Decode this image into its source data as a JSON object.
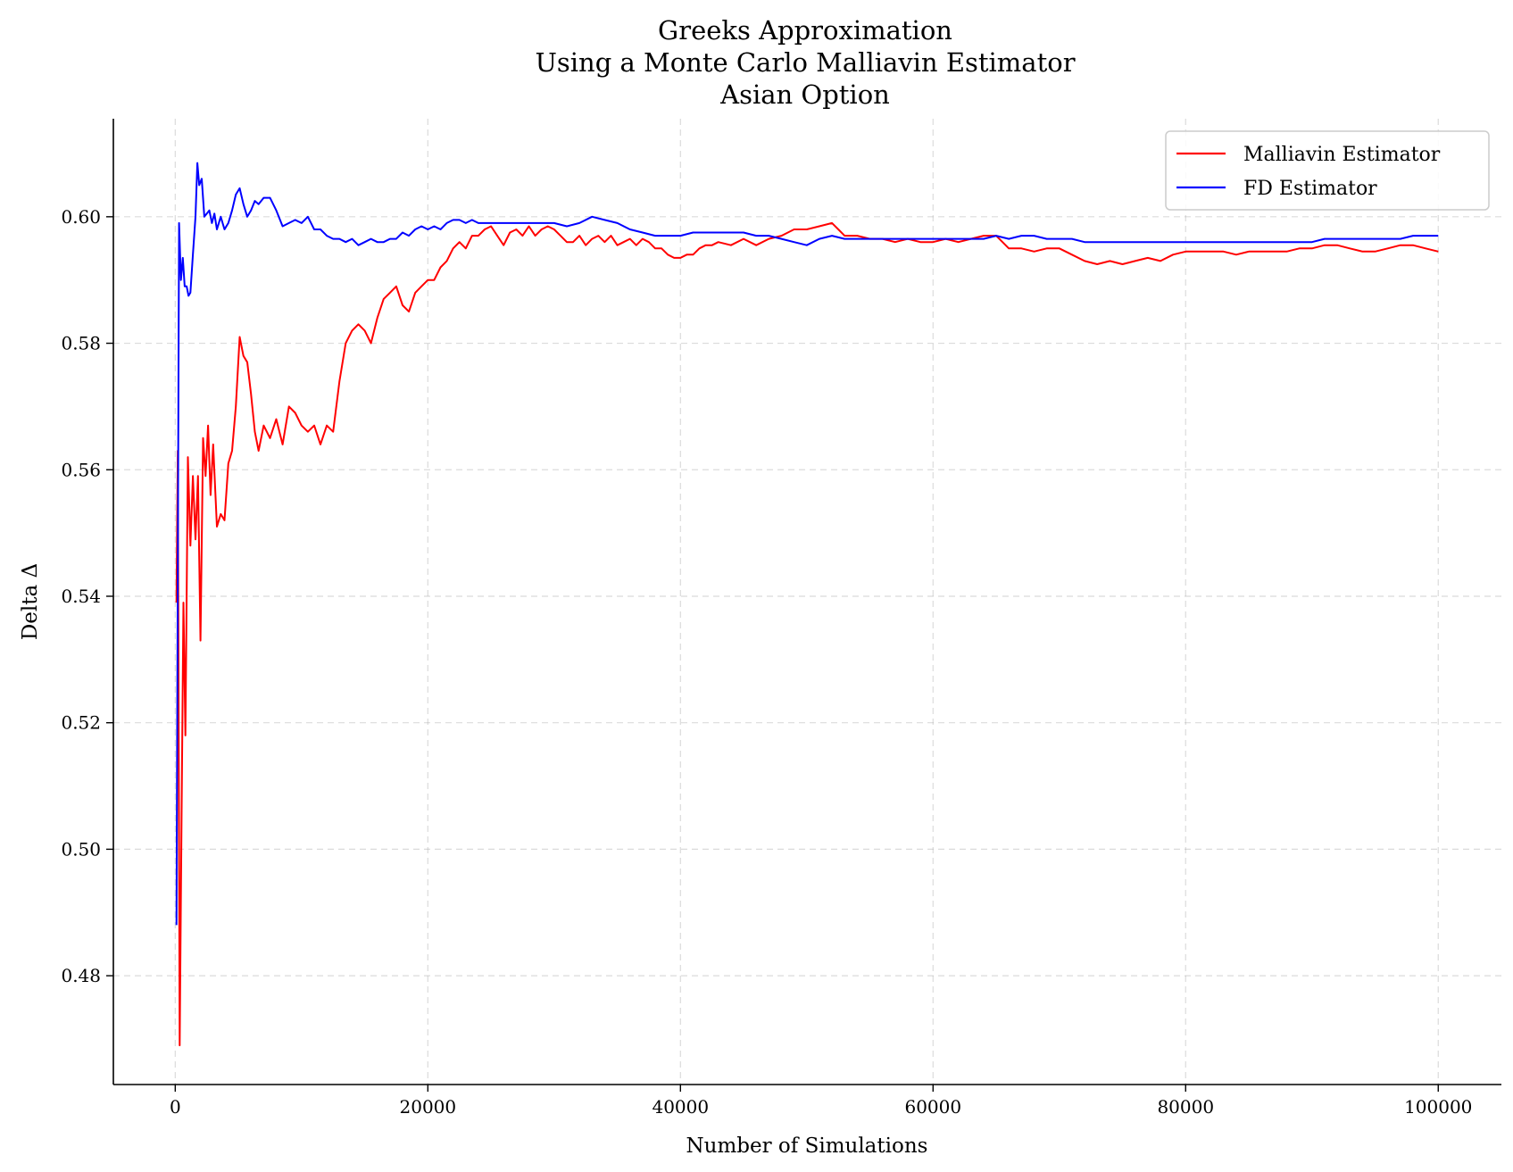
{
  "chart_data": {
    "type": "line",
    "title": [
      "Greeks Approximation",
      "Using a Monte Carlo Malliavin Estimator",
      "Asian Option"
    ],
    "xlabel": "Number of Simulations",
    "ylabel": "Delta Δ",
    "xlim": [
      -4900,
      105000
    ],
    "ylim": [
      0.4628,
      0.6155
    ],
    "xticks": [
      0,
      20000,
      40000,
      60000,
      80000,
      100000
    ],
    "xtick_labels": [
      "0",
      "20000",
      "40000",
      "60000",
      "80000",
      "100000"
    ],
    "yticks": [
      0.48,
      0.5,
      0.52,
      0.54,
      0.56,
      0.58,
      0.6
    ],
    "ytick_labels": [
      "0.48",
      "0.50",
      "0.52",
      "0.54",
      "0.56",
      "0.58",
      "0.60"
    ],
    "grid": true,
    "legend_position": "top-right",
    "series": [
      {
        "name": "Malliavin Estimator",
        "color": "#ff0000",
        "points": [
          [
            100,
            0.539
          ],
          [
            200,
            0.563
          ],
          [
            350,
            0.469
          ],
          [
            500,
            0.505
          ],
          [
            650,
            0.539
          ],
          [
            800,
            0.518
          ],
          [
            1000,
            0.562
          ],
          [
            1200,
            0.548
          ],
          [
            1400,
            0.559
          ],
          [
            1600,
            0.549
          ],
          [
            1800,
            0.559
          ],
          [
            2000,
            0.533
          ],
          [
            2200,
            0.565
          ],
          [
            2400,
            0.559
          ],
          [
            2600,
            0.567
          ],
          [
            2800,
            0.556
          ],
          [
            3000,
            0.564
          ],
          [
            3300,
            0.551
          ],
          [
            3600,
            0.553
          ],
          [
            3900,
            0.552
          ],
          [
            4200,
            0.561
          ],
          [
            4500,
            0.563
          ],
          [
            4800,
            0.57
          ],
          [
            5100,
            0.581
          ],
          [
            5400,
            0.578
          ],
          [
            5700,
            0.577
          ],
          [
            6000,
            0.572
          ],
          [
            6300,
            0.566
          ],
          [
            6600,
            0.563
          ],
          [
            7000,
            0.567
          ],
          [
            7500,
            0.565
          ],
          [
            8000,
            0.568
          ],
          [
            8500,
            0.564
          ],
          [
            9000,
            0.57
          ],
          [
            9500,
            0.569
          ],
          [
            10000,
            0.567
          ],
          [
            10500,
            0.566
          ],
          [
            11000,
            0.567
          ],
          [
            11500,
            0.564
          ],
          [
            12000,
            0.567
          ],
          [
            12500,
            0.566
          ],
          [
            13000,
            0.574
          ],
          [
            13500,
            0.58
          ],
          [
            14000,
            0.582
          ],
          [
            14500,
            0.583
          ],
          [
            15000,
            0.582
          ],
          [
            15500,
            0.58
          ],
          [
            16000,
            0.584
          ],
          [
            16500,
            0.587
          ],
          [
            17000,
            0.588
          ],
          [
            17500,
            0.589
          ],
          [
            18000,
            0.586
          ],
          [
            18500,
            0.585
          ],
          [
            19000,
            0.588
          ],
          [
            19500,
            0.589
          ],
          [
            20000,
            0.59
          ],
          [
            20500,
            0.59
          ],
          [
            21000,
            0.592
          ],
          [
            21500,
            0.593
          ],
          [
            22000,
            0.595
          ],
          [
            22500,
            0.596
          ],
          [
            23000,
            0.595
          ],
          [
            23500,
            0.597
          ],
          [
            24000,
            0.597
          ],
          [
            24500,
            0.598
          ],
          [
            25000,
            0.5985
          ],
          [
            25500,
            0.597
          ],
          [
            26000,
            0.5955
          ],
          [
            26500,
            0.5975
          ],
          [
            27000,
            0.598
          ],
          [
            27500,
            0.597
          ],
          [
            28000,
            0.5985
          ],
          [
            28500,
            0.597
          ],
          [
            29000,
            0.598
          ],
          [
            29500,
            0.5985
          ],
          [
            30000,
            0.598
          ],
          [
            30500,
            0.597
          ],
          [
            31000,
            0.596
          ],
          [
            31500,
            0.596
          ],
          [
            32000,
            0.597
          ],
          [
            32500,
            0.5955
          ],
          [
            33000,
            0.5965
          ],
          [
            33500,
            0.597
          ],
          [
            34000,
            0.596
          ],
          [
            34500,
            0.597
          ],
          [
            35000,
            0.5955
          ],
          [
            35500,
            0.596
          ],
          [
            36000,
            0.5965
          ],
          [
            36500,
            0.5955
          ],
          [
            37000,
            0.5965
          ],
          [
            37500,
            0.596
          ],
          [
            38000,
            0.595
          ],
          [
            38500,
            0.595
          ],
          [
            39000,
            0.594
          ],
          [
            39500,
            0.5935
          ],
          [
            40000,
            0.5935
          ],
          [
            40500,
            0.594
          ],
          [
            41000,
            0.594
          ],
          [
            41500,
            0.595
          ],
          [
            42000,
            0.5955
          ],
          [
            42500,
            0.5955
          ],
          [
            43000,
            0.596
          ],
          [
            44000,
            0.5955
          ],
          [
            45000,
            0.5965
          ],
          [
            46000,
            0.5955
          ],
          [
            47000,
            0.5965
          ],
          [
            48000,
            0.597
          ],
          [
            49000,
            0.598
          ],
          [
            50000,
            0.598
          ],
          [
            51000,
            0.5985
          ],
          [
            52000,
            0.599
          ],
          [
            52500,
            0.598
          ],
          [
            53000,
            0.597
          ],
          [
            54000,
            0.597
          ],
          [
            55000,
            0.5965
          ],
          [
            56000,
            0.5965
          ],
          [
            57000,
            0.596
          ],
          [
            58000,
            0.5965
          ],
          [
            59000,
            0.596
          ],
          [
            60000,
            0.596
          ],
          [
            61000,
            0.5965
          ],
          [
            62000,
            0.596
          ],
          [
            63000,
            0.5965
          ],
          [
            64000,
            0.597
          ],
          [
            65000,
            0.597
          ],
          [
            65500,
            0.596
          ],
          [
            66000,
            0.595
          ],
          [
            67000,
            0.595
          ],
          [
            68000,
            0.5945
          ],
          [
            69000,
            0.595
          ],
          [
            70000,
            0.595
          ],
          [
            71000,
            0.594
          ],
          [
            72000,
            0.593
          ],
          [
            73000,
            0.5925
          ],
          [
            74000,
            0.593
          ],
          [
            75000,
            0.5925
          ],
          [
            76000,
            0.593
          ],
          [
            77000,
            0.5935
          ],
          [
            78000,
            0.593
          ],
          [
            79000,
            0.594
          ],
          [
            80000,
            0.5945
          ],
          [
            81000,
            0.5945
          ],
          [
            82000,
            0.5945
          ],
          [
            83000,
            0.5945
          ],
          [
            84000,
            0.594
          ],
          [
            85000,
            0.5945
          ],
          [
            86000,
            0.5945
          ],
          [
            87000,
            0.5945
          ],
          [
            88000,
            0.5945
          ],
          [
            89000,
            0.595
          ],
          [
            90000,
            0.595
          ],
          [
            91000,
            0.5955
          ],
          [
            92000,
            0.5955
          ],
          [
            93000,
            0.595
          ],
          [
            94000,
            0.5945
          ],
          [
            95000,
            0.5945
          ],
          [
            96000,
            0.595
          ],
          [
            97000,
            0.5955
          ],
          [
            98000,
            0.5955
          ],
          [
            99000,
            0.595
          ],
          [
            100000,
            0.5945
          ]
        ]
      },
      {
        "name": "FD Estimator",
        "color": "#0000ff",
        "points": [
          [
            100,
            0.488
          ],
          [
            300,
            0.599
          ],
          [
            450,
            0.59
          ],
          [
            600,
            0.5935
          ],
          [
            750,
            0.589
          ],
          [
            900,
            0.589
          ],
          [
            1050,
            0.5875
          ],
          [
            1200,
            0.588
          ],
          [
            1400,
            0.594
          ],
          [
            1600,
            0.6
          ],
          [
            1750,
            0.6085
          ],
          [
            1900,
            0.605
          ],
          [
            2100,
            0.606
          ],
          [
            2300,
            0.6
          ],
          [
            2500,
            0.6005
          ],
          [
            2700,
            0.601
          ],
          [
            2900,
            0.599
          ],
          [
            3100,
            0.6005
          ],
          [
            3300,
            0.598
          ],
          [
            3600,
            0.6
          ],
          [
            3900,
            0.598
          ],
          [
            4200,
            0.599
          ],
          [
            4500,
            0.601
          ],
          [
            4800,
            0.6035
          ],
          [
            5100,
            0.6045
          ],
          [
            5400,
            0.602
          ],
          [
            5700,
            0.6
          ],
          [
            6000,
            0.601
          ],
          [
            6300,
            0.6025
          ],
          [
            6600,
            0.602
          ],
          [
            7000,
            0.603
          ],
          [
            7500,
            0.603
          ],
          [
            8000,
            0.601
          ],
          [
            8500,
            0.5985
          ],
          [
            9000,
            0.599
          ],
          [
            9500,
            0.5995
          ],
          [
            10000,
            0.599
          ],
          [
            10500,
            0.6
          ],
          [
            11000,
            0.598
          ],
          [
            11500,
            0.598
          ],
          [
            12000,
            0.597
          ],
          [
            12500,
            0.5965
          ],
          [
            13000,
            0.5965
          ],
          [
            13500,
            0.596
          ],
          [
            14000,
            0.5965
          ],
          [
            14500,
            0.5955
          ],
          [
            15000,
            0.596
          ],
          [
            15500,
            0.5965
          ],
          [
            16000,
            0.596
          ],
          [
            16500,
            0.596
          ],
          [
            17000,
            0.5965
          ],
          [
            17500,
            0.5965
          ],
          [
            18000,
            0.5975
          ],
          [
            18500,
            0.597
          ],
          [
            19000,
            0.598
          ],
          [
            19500,
            0.5985
          ],
          [
            20000,
            0.598
          ],
          [
            20500,
            0.5985
          ],
          [
            21000,
            0.598
          ],
          [
            21500,
            0.599
          ],
          [
            22000,
            0.5995
          ],
          [
            22500,
            0.5995
          ],
          [
            23000,
            0.599
          ],
          [
            23500,
            0.5995
          ],
          [
            24000,
            0.599
          ],
          [
            24500,
            0.599
          ],
          [
            25000,
            0.599
          ],
          [
            25500,
            0.599
          ],
          [
            26000,
            0.599
          ],
          [
            27000,
            0.599
          ],
          [
            28000,
            0.599
          ],
          [
            29000,
            0.599
          ],
          [
            30000,
            0.599
          ],
          [
            31000,
            0.5985
          ],
          [
            32000,
            0.599
          ],
          [
            33000,
            0.6
          ],
          [
            34000,
            0.5995
          ],
          [
            35000,
            0.599
          ],
          [
            36000,
            0.598
          ],
          [
            37000,
            0.5975
          ],
          [
            38000,
            0.597
          ],
          [
            39000,
            0.597
          ],
          [
            40000,
            0.597
          ],
          [
            41000,
            0.5975
          ],
          [
            42000,
            0.5975
          ],
          [
            43000,
            0.5975
          ],
          [
            44000,
            0.5975
          ],
          [
            45000,
            0.5975
          ],
          [
            46000,
            0.597
          ],
          [
            47000,
            0.597
          ],
          [
            48000,
            0.5965
          ],
          [
            49000,
            0.596
          ],
          [
            50000,
            0.5955
          ],
          [
            51000,
            0.5965
          ],
          [
            52000,
            0.597
          ],
          [
            53000,
            0.5965
          ],
          [
            54000,
            0.5965
          ],
          [
            55000,
            0.5965
          ],
          [
            56000,
            0.5965
          ],
          [
            57000,
            0.5965
          ],
          [
            58000,
            0.5965
          ],
          [
            59000,
            0.5965
          ],
          [
            60000,
            0.5965
          ],
          [
            61000,
            0.5965
          ],
          [
            62000,
            0.5965
          ],
          [
            63000,
            0.5965
          ],
          [
            64000,
            0.5965
          ],
          [
            65000,
            0.597
          ],
          [
            66000,
            0.5965
          ],
          [
            67000,
            0.597
          ],
          [
            68000,
            0.597
          ],
          [
            69000,
            0.5965
          ],
          [
            70000,
            0.5965
          ],
          [
            71000,
            0.5965
          ],
          [
            72000,
            0.596
          ],
          [
            73000,
            0.596
          ],
          [
            74000,
            0.596
          ],
          [
            75000,
            0.596
          ],
          [
            76000,
            0.596
          ],
          [
            77000,
            0.596
          ],
          [
            78000,
            0.596
          ],
          [
            79000,
            0.596
          ],
          [
            80000,
            0.596
          ],
          [
            81000,
            0.596
          ],
          [
            82000,
            0.596
          ],
          [
            83000,
            0.596
          ],
          [
            84000,
            0.596
          ],
          [
            85000,
            0.596
          ],
          [
            86000,
            0.596
          ],
          [
            87000,
            0.596
          ],
          [
            88000,
            0.596
          ],
          [
            89000,
            0.596
          ],
          [
            90000,
            0.596
          ],
          [
            91000,
            0.5965
          ],
          [
            92000,
            0.5965
          ],
          [
            93000,
            0.5965
          ],
          [
            94000,
            0.5965
          ],
          [
            95000,
            0.5965
          ],
          [
            96000,
            0.5965
          ],
          [
            97000,
            0.5965
          ],
          [
            98000,
            0.597
          ],
          [
            99000,
            0.597
          ],
          [
            100000,
            0.597
          ]
        ]
      }
    ]
  }
}
